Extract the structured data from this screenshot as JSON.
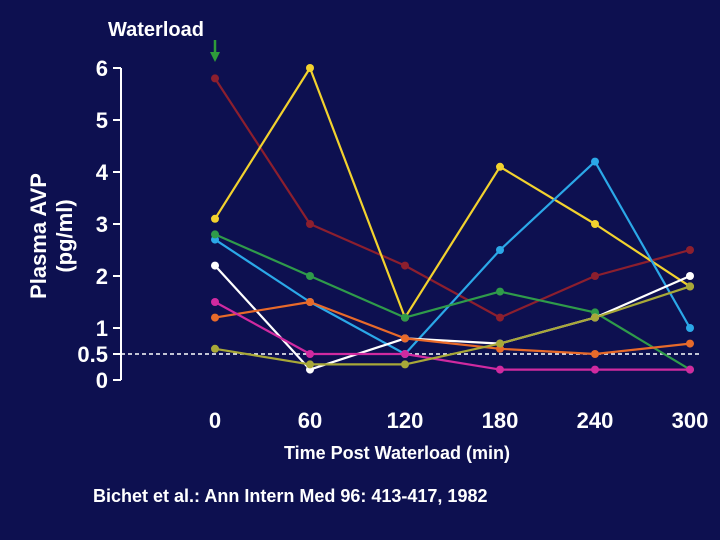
{
  "chart_data": {
    "type": "line",
    "title": "",
    "xlabel": "Time Post Waterload (min)",
    "ylabel": "Plasma AVP (pg/ml)",
    "x": [
      0,
      60,
      120,
      180,
      240,
      300
    ],
    "xlim": [
      0,
      300
    ],
    "ylim": [
      0,
      6
    ],
    "yticks": [
      "6",
      "5",
      "4",
      "3",
      "2",
      "1",
      "0.5",
      "0"
    ],
    "xticks": [
      "0",
      "60",
      "120",
      "180",
      "240",
      "300"
    ],
    "grid": false,
    "legend": "none",
    "reference_line": {
      "y": 0.5,
      "style": "dashed",
      "color": "#ffffff"
    },
    "annotation": {
      "text": "Waterload",
      "x": 0,
      "arrow_color": "#2e9b3a"
    },
    "citation": "Bichet et al.: Ann Intern Med 96: 413-417, 1982",
    "series": [
      {
        "color": "#8c1f2e",
        "values": [
          5.8,
          3.0,
          2.2,
          1.2,
          2.0,
          2.5
        ]
      },
      {
        "color": "#f2d22e",
        "values": [
          3.1,
          6.0,
          1.2,
          4.1,
          3.0,
          1.8
        ]
      },
      {
        "color": "#2ba8e8",
        "values": [
          2.7,
          1.5,
          0.5,
          2.5,
          4.2,
          1.0
        ]
      },
      {
        "color": "#2f9b4a",
        "values": [
          2.8,
          2.0,
          1.2,
          1.7,
          1.3,
          0.2
        ]
      },
      {
        "color": "#ffffff",
        "values": [
          2.2,
          0.2,
          0.8,
          0.7,
          1.2,
          2.0
        ]
      },
      {
        "color": "#e86a2a",
        "values": [
          1.2,
          1.5,
          0.8,
          0.6,
          0.5,
          0.7
        ]
      },
      {
        "color": "#d02aa0",
        "values": [
          1.5,
          0.5,
          0.5,
          0.2,
          0.2,
          0.2
        ]
      },
      {
        "color": "#a8a838",
        "values": [
          0.6,
          0.3,
          0.3,
          0.7,
          1.2,
          1.8
        ]
      }
    ]
  }
}
